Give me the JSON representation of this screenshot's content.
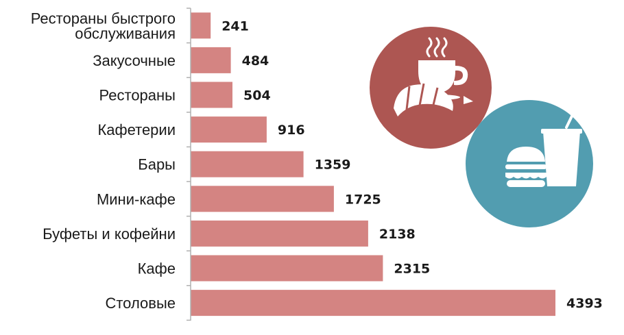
{
  "chart_data": {
    "type": "bar",
    "orientation": "horizontal",
    "categories": [
      [
        "Рестораны быстрого",
        "обслуживания"
      ],
      [
        "Закусочные"
      ],
      [
        "Рестораны"
      ],
      [
        "Кафетерии"
      ],
      [
        "Бары"
      ],
      [
        "Мини-кафе"
      ],
      [
        "Буфеты и кофейни"
      ],
      [
        "Кафе"
      ],
      [
        "Столовые"
      ]
    ],
    "values": [
      241,
      484,
      504,
      916,
      1359,
      1725,
      2138,
      2315,
      4393
    ],
    "value_labels": [
      "241",
      "484",
      "504",
      "916",
      "1359",
      "1725",
      "2138",
      "2315",
      "4393"
    ],
    "xlim": [
      0,
      4393
    ],
    "grid": false,
    "legend": "none",
    "bar_color": "#d48482",
    "axis_color": "#b0b0b0"
  },
  "decor": {
    "coffee_badge_color": "#ad5652",
    "fastfood_badge_color": "#529db0",
    "coffee_icons": [
      "steam-icon",
      "coffee-cup-icon",
      "croissant-icon"
    ],
    "fastfood_icons": [
      "burger-icon",
      "drink-cup-icon",
      "straw-icon"
    ]
  }
}
